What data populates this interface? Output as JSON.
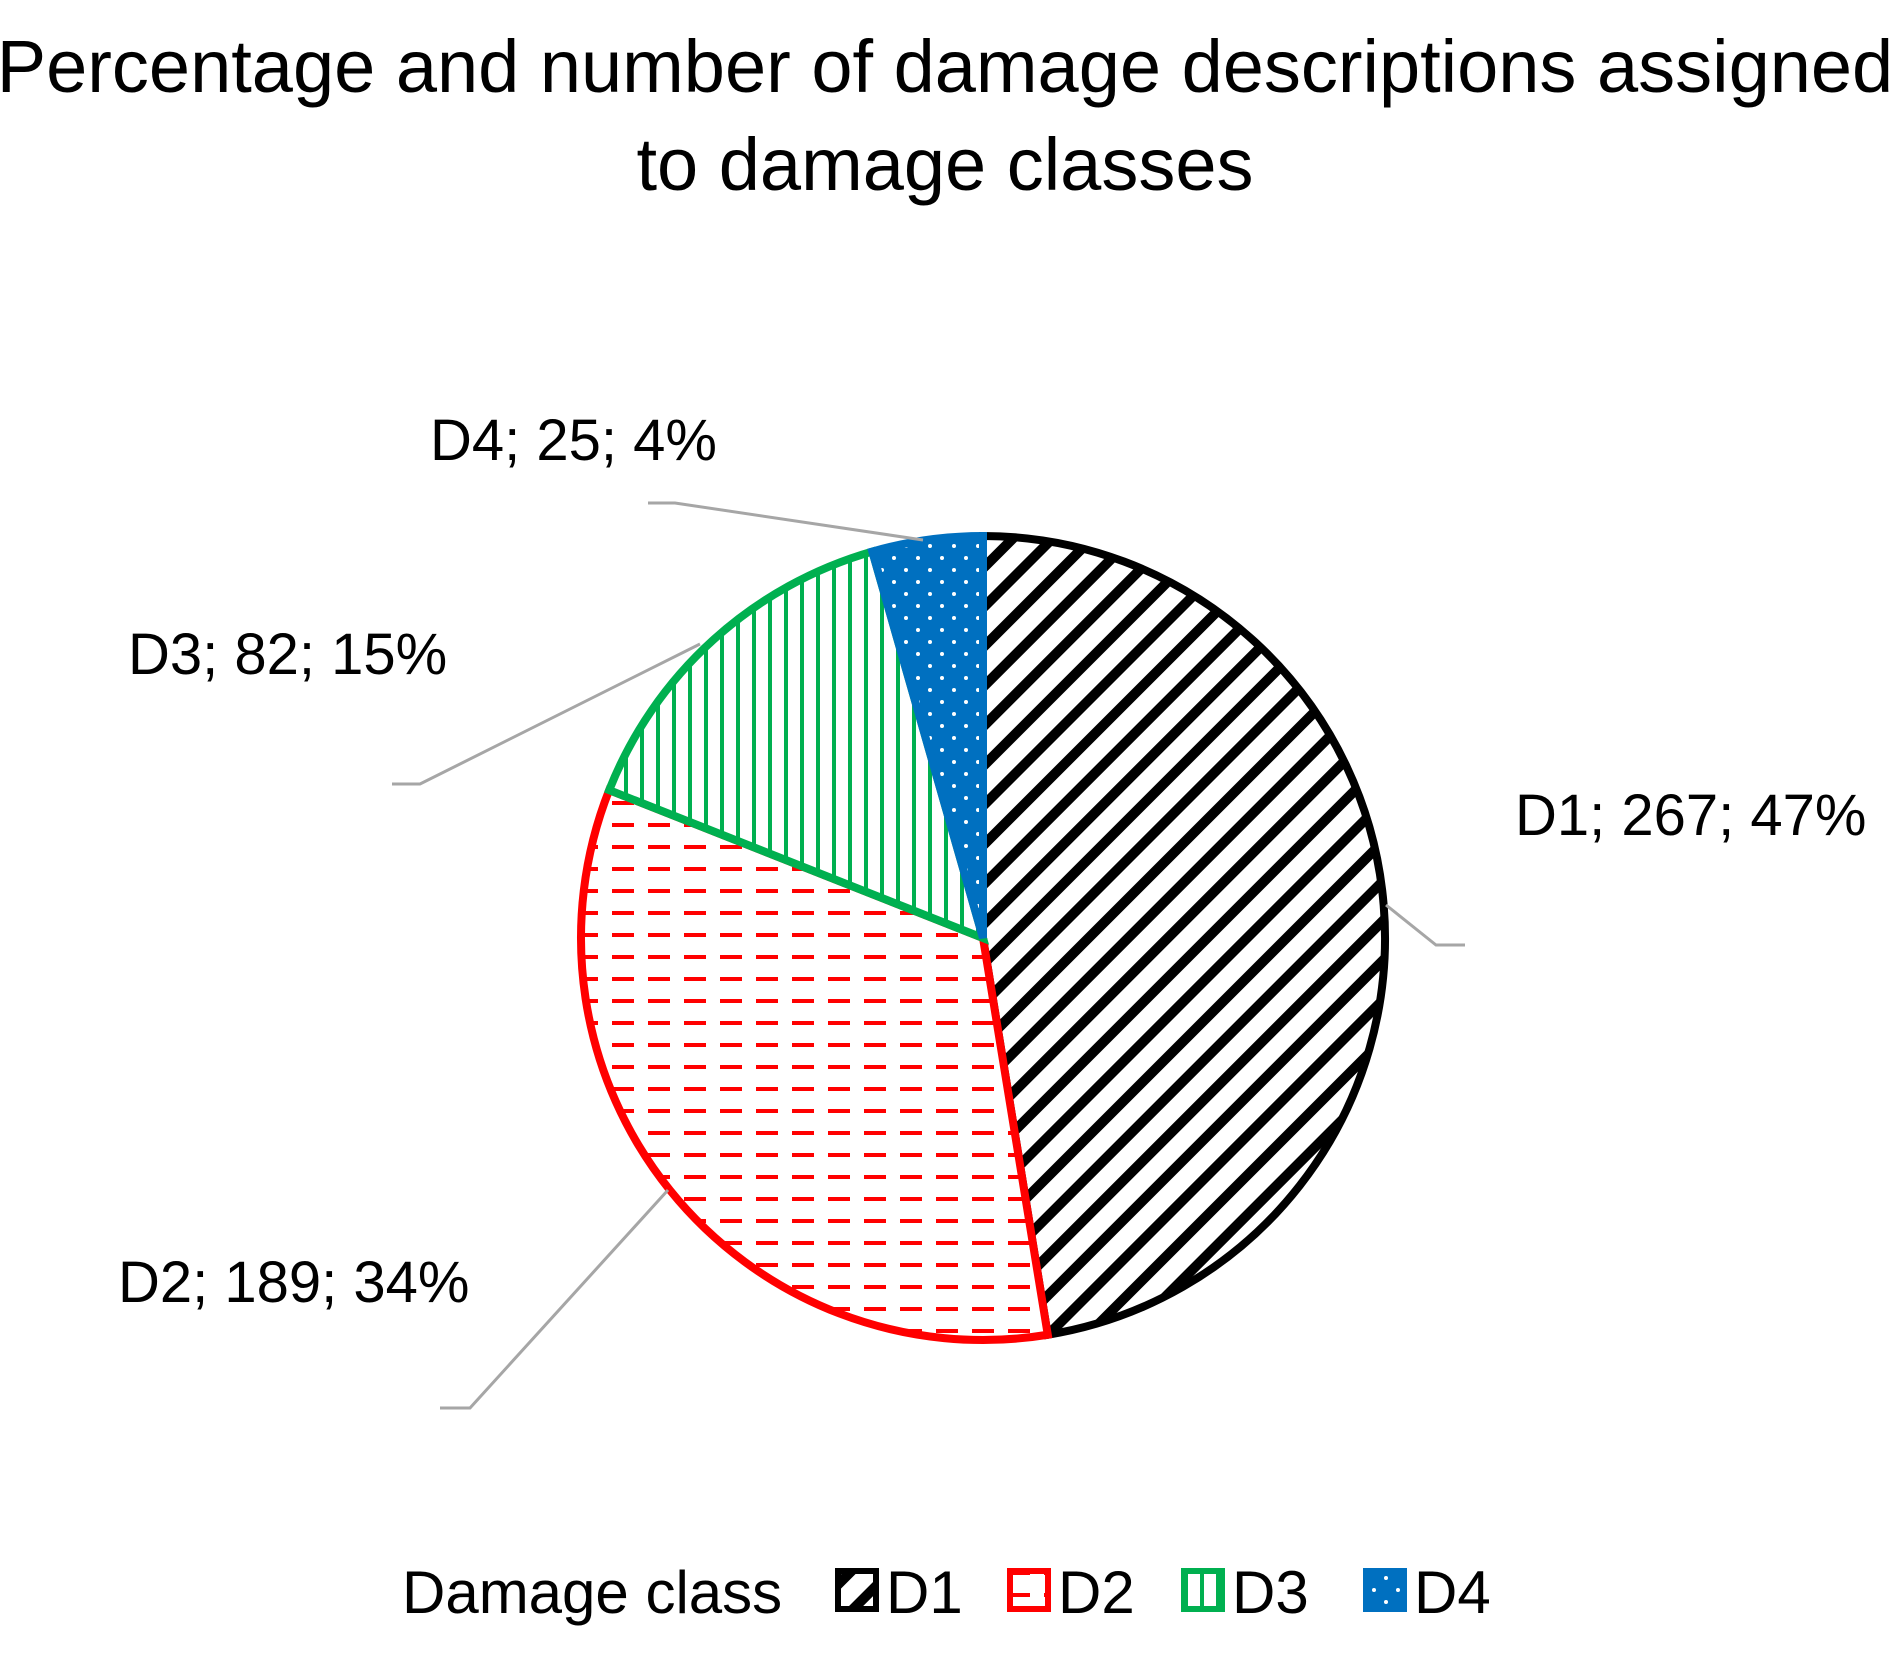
{
  "chart_data": {
    "type": "pie",
    "title_lines": [
      "Percentage and number of damage descriptions assigned",
      "to damage classes"
    ],
    "legend": {
      "title": "Damage class",
      "placement": "bottom"
    },
    "slices": [
      {
        "name": "D1",
        "value": 267,
        "percent": 47,
        "label": "D1; 267; 47%",
        "color": "#000000",
        "pattern": "diagonal-stripes"
      },
      {
        "name": "D2",
        "value": 189,
        "percent": 34,
        "label": "D2; 189; 34%",
        "color": "#ff0000",
        "pattern": "dashed-horizontal"
      },
      {
        "name": "D3",
        "value": 82,
        "percent": 15,
        "label": "D3; 82; 15%",
        "color": "#00b050",
        "pattern": "vertical-stripes"
      },
      {
        "name": "D4",
        "value": 25,
        "percent": 4,
        "label": "D4; 25; 4%",
        "color": "#0070c0",
        "pattern": "dots"
      }
    ],
    "leader_line_color": "#a6a6a6"
  }
}
